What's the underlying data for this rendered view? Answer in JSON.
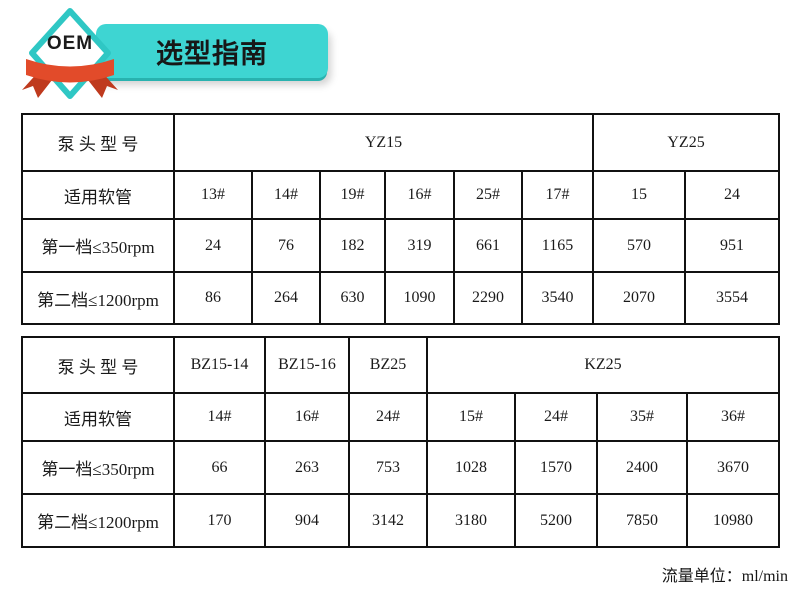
{
  "header": {
    "badge_label": "OEM",
    "title": "选型指南"
  },
  "colors": {
    "banner_teal": "#3ed5d2",
    "banner_shadow": "#28b2af",
    "badge_border": "#2fc7c4",
    "ribbon_red": "#e24b2a",
    "ribbon_dark": "#bf3a1e",
    "table_border": "#111111",
    "text": "#1a1a1a"
  },
  "tables": [
    {
      "name": "yz-series",
      "header": {
        "label": "泵 头 型 号",
        "groups": [
          {
            "label": "YZ15",
            "span": 6
          },
          {
            "label": "YZ25",
            "span": 2
          }
        ]
      },
      "rows": [
        {
          "label": "适用软管",
          "values": [
            "13#",
            "14#",
            "19#",
            "16#",
            "25#",
            "17#",
            "15",
            "24"
          ]
        },
        {
          "label": "第一档≤350rpm",
          "values": [
            "24",
            "76",
            "182",
            "319",
            "661",
            "1165",
            "570",
            "951"
          ]
        },
        {
          "label": "第二档≤1200rpm",
          "values": [
            "86",
            "264",
            "630",
            "1090",
            "2290",
            "3540",
            "2070",
            "3554"
          ]
        }
      ]
    },
    {
      "name": "bz-kz-series",
      "header": {
        "label": "泵 头 型 号",
        "groups": [
          {
            "label": "BZ15-14",
            "span": 1
          },
          {
            "label": "BZ15-16",
            "span": 1
          },
          {
            "label": "BZ25",
            "span": 1
          },
          {
            "label": "KZ25",
            "span": 4
          }
        ]
      },
      "rows": [
        {
          "label": "适用软管",
          "values": [
            "14#",
            "16#",
            "24#",
            "15#",
            "24#",
            "35#",
            "36#"
          ]
        },
        {
          "label": "第一档≤350rpm",
          "values": [
            "66",
            "263",
            "753",
            "1028",
            "1570",
            "2400",
            "3670"
          ]
        },
        {
          "label": "第二档≤1200rpm",
          "values": [
            "170",
            "904",
            "3142",
            "3180",
            "5200",
            "7850",
            "10980"
          ]
        }
      ]
    }
  ],
  "footer": {
    "note": "流量单位：ml/min"
  }
}
